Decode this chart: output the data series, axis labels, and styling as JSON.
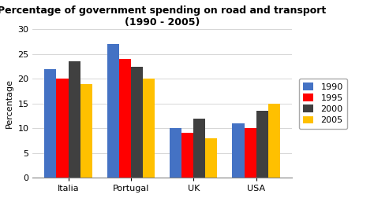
{
  "title": "Percentage of government spending on road and transport\n(1990 - 2005)",
  "ylabel": "Percentage",
  "categories": [
    "Italia",
    "Portugal",
    "UK",
    "USA"
  ],
  "years": [
    "1990",
    "1995",
    "2000",
    "2005"
  ],
  "values": {
    "1990": [
      22,
      27,
      10,
      11
    ],
    "1995": [
      20,
      24,
      9,
      10
    ],
    "2000": [
      23.5,
      22.5,
      12,
      13.5
    ],
    "2005": [
      19,
      20,
      8,
      15
    ]
  },
  "colors": {
    "1990": "#4472c4",
    "1995": "#ff0000",
    "2000": "#404040",
    "2005": "#ffc000"
  },
  "ylim": [
    0,
    30
  ],
  "yticks": [
    0,
    5,
    10,
    15,
    20,
    25,
    30
  ],
  "bar_width": 0.19,
  "background_color": "#ffffff",
  "title_fontsize": 9,
  "axis_fontsize": 8,
  "legend_fontsize": 8,
  "tick_fontsize": 8
}
